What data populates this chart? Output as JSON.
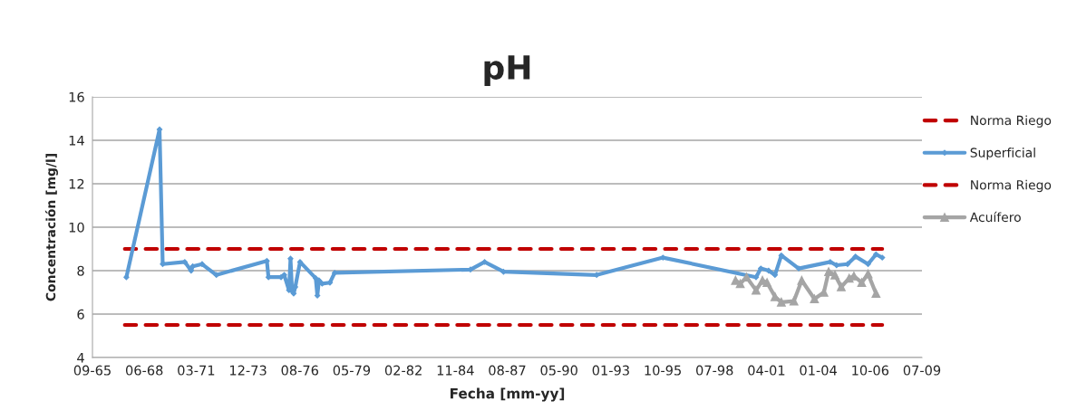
{
  "chart_data": {
    "type": "line",
    "title": "pH",
    "xlabel": "Fecha [mm-yy]",
    "ylabel": "Concentración [mg/l]",
    "xlim": [
      "1965-09-15",
      "2009-07-06"
    ],
    "xticks": [
      {
        "value": "1965-09-15",
        "label": "09-65"
      },
      {
        "value": "1968-06-11",
        "label": "06-68"
      },
      {
        "value": "1971-03-08",
        "label": "03-71"
      },
      {
        "value": "1973-12-02",
        "label": "12-73"
      },
      {
        "value": "1976-08-28",
        "label": "08-76"
      },
      {
        "value": "1979-05-25",
        "label": "05-79"
      },
      {
        "value": "1982-02-18",
        "label": "02-82"
      },
      {
        "value": "1984-11-14",
        "label": "11-84"
      },
      {
        "value": "1987-08-11",
        "label": "08-87"
      },
      {
        "value": "1990-05-07",
        "label": "05-90"
      },
      {
        "value": "1993-01-31",
        "label": "01-93"
      },
      {
        "value": "1995-10-28",
        "label": "10-95"
      },
      {
        "value": "1998-07-24",
        "label": "07-98"
      },
      {
        "value": "2001-04-19",
        "label": "04-01"
      },
      {
        "value": "2004-01-14",
        "label": "01-04"
      },
      {
        "value": "2006-10-10",
        "label": "10-06"
      },
      {
        "value": "2009-07-06",
        "label": "07-09"
      }
    ],
    "ylim": [
      4,
      16
    ],
    "yticks": [
      4,
      6,
      8,
      10,
      12,
      14,
      16
    ],
    "grid": "y",
    "legend": "right",
    "series": [
      {
        "name": "Norma Riego",
        "color": "#c00000",
        "line_style": "dashed",
        "marker": "none",
        "x": [
          "1967-06",
          "2007-06"
        ],
        "values": [
          9,
          9
        ]
      },
      {
        "name": "Superficial",
        "color": "#5b9bd5",
        "line_style": "solid",
        "marker": "diamond",
        "x": [
          "1967-07",
          "1969-04",
          "1969-06",
          "1970-08",
          "1970-12",
          "1971-01",
          "1971-07",
          "1972-04",
          "1974-12",
          "1975-01",
          "1975-09",
          "1975-11",
          "1976-02",
          "1976-03",
          "1976-04",
          "1976-05",
          "1976-06",
          "1976-09",
          "1977-07",
          "1977-08",
          "1977-09",
          "1977-11",
          "1978-04",
          "1978-07",
          "1985-09",
          "1986-06",
          "1987-06",
          "1992-05",
          "1995-11",
          "2000-10",
          "2001-01",
          "2001-06",
          "2001-10",
          "2002-02",
          "2003-01",
          "2004-09",
          "2005-01",
          "2005-08",
          "2006-01",
          "2006-09",
          "2007-02",
          "2007-06"
        ],
        "values": [
          7.7,
          14.5,
          8.3,
          8.4,
          8.0,
          8.2,
          8.3,
          7.8,
          8.45,
          7.7,
          7.7,
          7.8,
          7.1,
          8.55,
          7.05,
          6.95,
          7.25,
          8.4,
          7.65,
          6.85,
          7.55,
          7.4,
          7.45,
          7.9,
          8.05,
          8.4,
          7.95,
          7.8,
          8.6,
          7.7,
          8.1,
          8.0,
          7.8,
          8.7,
          8.1,
          8.4,
          8.25,
          8.3,
          8.65,
          8.3,
          8.75,
          8.6
        ]
      },
      {
        "name": "Norma Riego",
        "color": "#c00000",
        "line_style": "dashed",
        "marker": "none",
        "x": [
          "1967-06",
          "2007-06"
        ],
        "values": [
          5.5,
          5.5
        ]
      },
      {
        "name": "Acuífero",
        "color": "#a5a5a5",
        "line_style": "solid",
        "marker": "triangle",
        "x": [
          "1999-09",
          "1999-12",
          "2000-04",
          "2000-10",
          "2001-02",
          "2001-05",
          "2001-10",
          "2002-02",
          "2002-10",
          "2003-03",
          "2003-11",
          "2004-05",
          "2004-08",
          "2004-12",
          "2005-04",
          "2005-09",
          "2005-12",
          "2006-05",
          "2006-09",
          "2007-02"
        ],
        "values": [
          7.55,
          7.4,
          7.7,
          7.1,
          7.55,
          7.45,
          6.8,
          6.55,
          6.6,
          7.55,
          6.7,
          7.0,
          7.95,
          7.8,
          7.25,
          7.65,
          7.75,
          7.45,
          7.85,
          6.95
        ]
      }
    ]
  }
}
